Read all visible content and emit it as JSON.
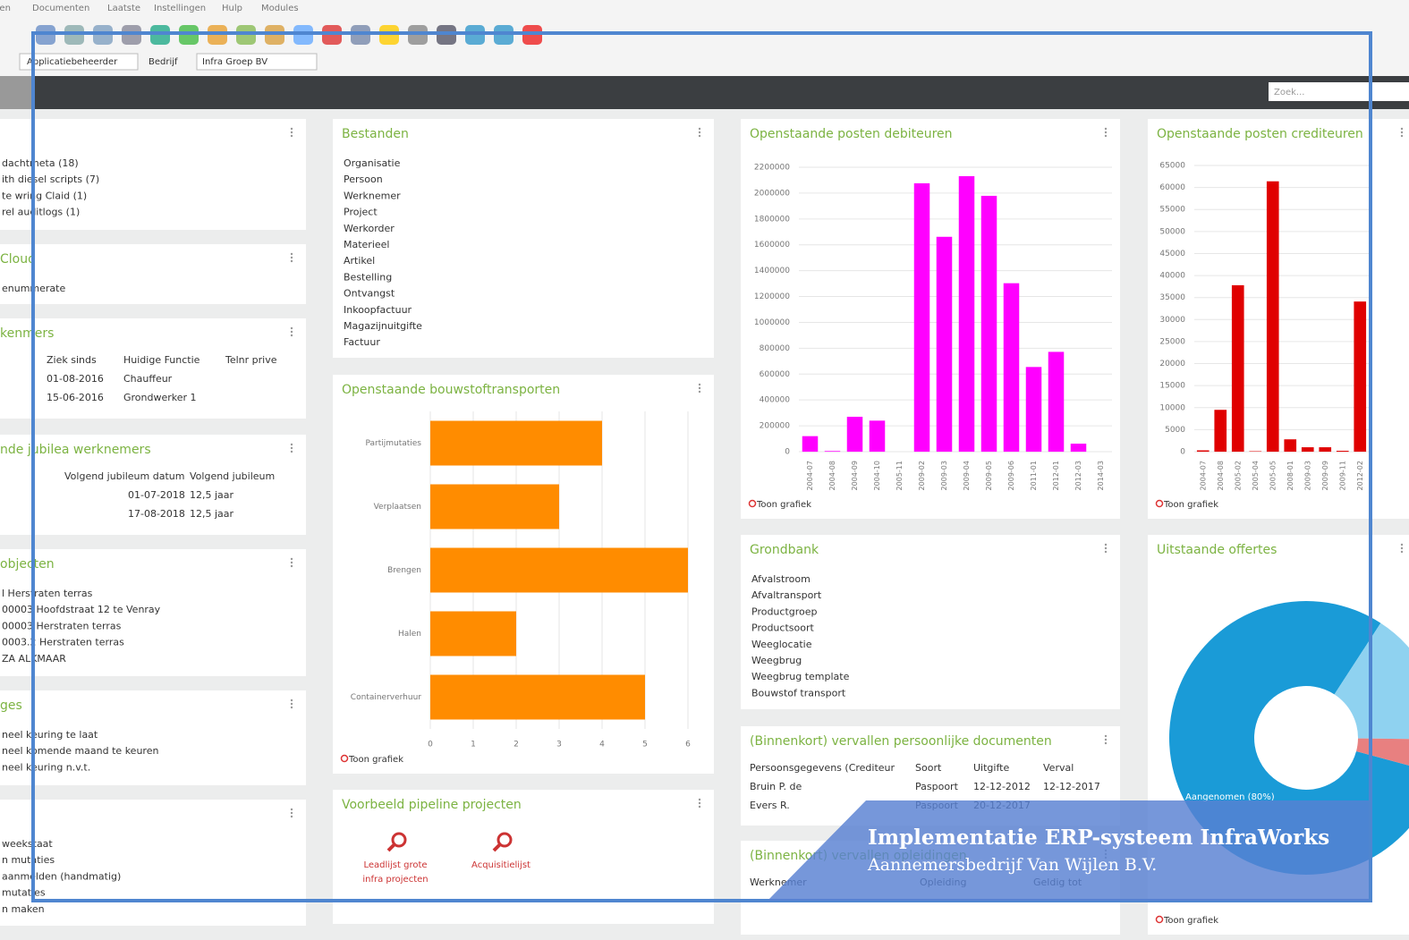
{
  "menu": [
    "ken",
    "Documenten",
    "Laatste",
    "Instellingen",
    "Hulp",
    "Modules"
  ],
  "toolbar": {
    "role": "Applicatiebeheerder",
    "company_label": "Bedrijf",
    "company": "Infra Groep BV"
  },
  "search_placeholder": "Zoek...",
  "chart_link": "Toon grafiek",
  "panels": [
    {
      "items": [
        "dachtmeta (18)",
        "ith diesel scripts (7)",
        "te wring Claid (1)",
        "rel auditlogs (1)"
      ]
    },
    {
      "title": "Cloud",
      "items": [
        "enummerate"
      ]
    },
    {
      "title": "kenmers",
      "columns": [
        "Ziek sinds",
        "Huidige Functie",
        "Telnr prive"
      ],
      "rows": [
        [
          "01-08-2016",
          "Chauffeur"
        ],
        [
          "15-06-2016",
          "Grondwerker 1"
        ]
      ]
    },
    {
      "title": "nde jubilea werknemers",
      "columns": [
        "Volgend jubileum datum",
        "Volgend jubileum"
      ],
      "rows": [
        [
          "01-07-2018",
          "12,5 jaar"
        ],
        [
          "17-08-2018",
          "12,5 jaar"
        ]
      ]
    },
    {
      "title": "objecten",
      "items": [
        "l Herstraten terras",
        "00003 Hoofdstraat 12 te Venray",
        "00003 Herstraten terras",
        "0003.2 Herstraten terras",
        "ZA ALKMAAR"
      ]
    },
    {
      "title": "ges",
      "items": [
        "neel keuring te laat",
        "neel komende maand te keuren",
        "neel keuring n.v.t."
      ]
    },
    {
      "items": [
        "weekstaat",
        "n mutaties",
        "aanmelden (handmatig)",
        "mutaties",
        "n maken"
      ]
    },
    {
      "title": "Bestanden",
      "items": [
        "Organisatie",
        "Persoon",
        "Werknemer",
        "Project",
        "Werkorder",
        "Materieel",
        "Artikel",
        "Bestelling",
        "Ontvangst",
        "Inkoopfactuur",
        "Magazijnuitgifte",
        "Factuur"
      ]
    },
    {
      "title": "Openstaande bouwstoftransporten",
      "chart": 0
    },
    {
      "title": "Voorbeeld pipeline projecten",
      "links": [
        [
          "Leadlijst grote",
          "infra projecten"
        ],
        [
          "Acquisitielijst"
        ]
      ]
    },
    {
      "title": "Openstaande posten debiteuren",
      "chart": 1
    },
    {
      "title": "Grondbank",
      "items": [
        "Afvalstroom",
        "Afvaltransport",
        "Productgroep",
        "Productsoort",
        "Weeglocatie",
        "Weegbrug",
        "Weegbrug template",
        "Bouwstof transport"
      ]
    },
    {
      "title": "(Binnenkort) vervallen persoonlijke documenten",
      "columns": [
        "Persoonsgegevens (Crediteur",
        "Soort",
        "Uitgifte",
        "Verval"
      ],
      "rows": [
        [
          "Bruin P. de",
          "Paspoort",
          "12-12-2012",
          "12-12-2017"
        ],
        [
          "Evers R.",
          "Paspoort",
          "20-12-2017"
        ]
      ]
    },
    {
      "title": "(Binnenkort) vervallen opleidingen",
      "columns": [
        "Werknemer",
        "Opleiding",
        "Geldig tot"
      ],
      "rows": []
    },
    {
      "title": "Openstaande posten crediteuren",
      "chart": 2
    },
    {
      "title": "Uitstaande offertes",
      "chart": 3
    }
  ],
  "chart_data": [
    {
      "type": "hbar",
      "categories": [
        "Partijmutaties",
        "Verplaatsen",
        "Brengen",
        "Halen",
        "Containerverhuur"
      ],
      "values": [
        4,
        3,
        6,
        2,
        5
      ],
      "color": "#ff8c00",
      "xlim": [
        0,
        6
      ],
      "xticks": [
        0,
        1,
        2,
        3,
        4,
        5,
        6
      ],
      "grid": true
    },
    {
      "type": "bar",
      "categories": [
        "2004-07",
        "2004-08",
        "2004-09",
        "2004-10",
        "2005-11",
        "2009-02",
        "2009-03",
        "2009-04",
        "2009-05",
        "2009-06",
        "2011-01",
        "2012-01",
        "2012-03",
        "2014-03"
      ],
      "values": [
        120000,
        5000,
        270000,
        240000,
        0,
        2076000,
        1662000,
        2131000,
        1979000,
        1303000,
        655000,
        772000,
        62000,
        0
      ],
      "color": "#ff00ff",
      "ylim": [
        0,
        2200000
      ],
      "yticks": [
        0,
        200000,
        400000,
        600000,
        800000,
        1000000,
        1200000,
        1400000,
        1600000,
        1800000,
        2000000,
        2200000
      ],
      "grid": true
    },
    {
      "type": "bar",
      "categories": [
        "2004-07",
        "2004-08",
        "2005-02",
        "2005-04",
        "2005-05",
        "2008-01",
        "2009-03",
        "2009-09",
        "2009-11",
        "2012-02"
      ],
      "values": [
        300,
        9500,
        37800,
        100,
        61400,
        2800,
        1000,
        1000,
        200,
        34100
      ],
      "color": "#e00000",
      "ylim": [
        0,
        65000
      ],
      "yticks": [
        0,
        5000,
        10000,
        15000,
        20000,
        25000,
        30000,
        35000,
        40000,
        45000,
        50000,
        55000,
        60000,
        65000
      ],
      "grid": true
    },
    {
      "type": "pie",
      "labels": [
        "Aangenomen (80%)",
        null,
        null
      ],
      "values": [
        80,
        16,
        4
      ],
      "colors": [
        "#1a9bd7",
        "#8fd2f0",
        "#e88080"
      ]
    }
  ],
  "banner": {
    "title": "Implementatie ERP-systeem InfraWorks",
    "subtitle": "Aannemersbedrijf Van Wijlen B.V."
  }
}
